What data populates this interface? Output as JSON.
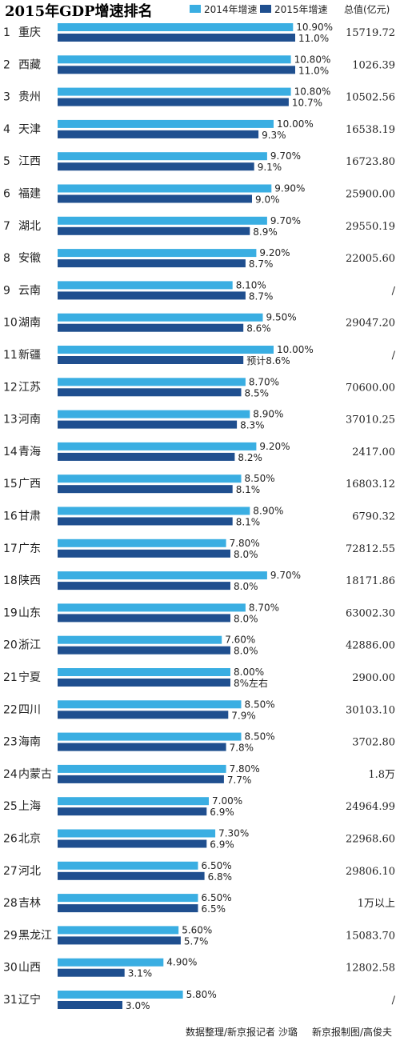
{
  "chart_data": {
    "type": "bar",
    "title": "2015年GDP增速排名",
    "total_header": "总值(亿元)",
    "series": [
      {
        "name": "2014年增速",
        "color": "#3aaee2"
      },
      {
        "name": "2015年增速",
        "color": "#1f4f8f"
      }
    ],
    "rows": [
      {
        "rank": "1",
        "name": "重庆",
        "v2014": 10.9,
        "l2014": "10.90%",
        "v2015": 11.0,
        "l2015": "11.0%",
        "total": "15719.72"
      },
      {
        "rank": "2",
        "name": "西藏",
        "v2014": 10.8,
        "l2014": "10.80%",
        "v2015": 11.0,
        "l2015": "11.0%",
        "total": "1026.39"
      },
      {
        "rank": "3",
        "name": "贵州",
        "v2014": 10.8,
        "l2014": "10.80%",
        "v2015": 10.7,
        "l2015": "10.7%",
        "total": "10502.56"
      },
      {
        "rank": "4",
        "name": "天津",
        "v2014": 10.0,
        "l2014": "10.00%",
        "v2015": 9.3,
        "l2015": "9.3%",
        "total": "16538.19"
      },
      {
        "rank": "5",
        "name": "江西",
        "v2014": 9.7,
        "l2014": "9.70%",
        "v2015": 9.1,
        "l2015": "9.1%",
        "total": "16723.80"
      },
      {
        "rank": "6",
        "name": "福建",
        "v2014": 9.9,
        "l2014": "9.90%",
        "v2015": 9.0,
        "l2015": "9.0%",
        "total": "25900.00"
      },
      {
        "rank": "7",
        "name": "湖北",
        "v2014": 9.7,
        "l2014": "9.70%",
        "v2015": 8.9,
        "l2015": "8.9%",
        "total": "29550.19"
      },
      {
        "rank": "8",
        "name": "安徽",
        "v2014": 9.2,
        "l2014": "9.20%",
        "v2015": 8.7,
        "l2015": "8.7%",
        "total": "22005.60"
      },
      {
        "rank": "9",
        "name": "云南",
        "v2014": 8.1,
        "l2014": "8.10%",
        "v2015": 8.7,
        "l2015": "8.7%",
        "total": "/"
      },
      {
        "rank": "10",
        "name": "湖南",
        "v2014": 9.5,
        "l2014": "9.50%",
        "v2015": 8.6,
        "l2015": "8.6%",
        "total": "29047.20"
      },
      {
        "rank": "11",
        "name": "新疆",
        "v2014": 10.0,
        "l2014": "10.00%",
        "v2015": 8.6,
        "l2015": "预计8.6%",
        "total": "/"
      },
      {
        "rank": "12",
        "name": "江苏",
        "v2014": 8.7,
        "l2014": "8.70%",
        "v2015": 8.5,
        "l2015": "8.5%",
        "total": "70600.00"
      },
      {
        "rank": "13",
        "name": "河南",
        "v2014": 8.9,
        "l2014": "8.90%",
        "v2015": 8.3,
        "l2015": "8.3%",
        "total": "37010.25"
      },
      {
        "rank": "14",
        "name": "青海",
        "v2014": 9.2,
        "l2014": "9.20%",
        "v2015": 8.2,
        "l2015": "8.2%",
        "total": "2417.00"
      },
      {
        "rank": "15",
        "name": "广西",
        "v2014": 8.5,
        "l2014": "8.50%",
        "v2015": 8.1,
        "l2015": "8.1%",
        "total": "16803.12"
      },
      {
        "rank": "16",
        "name": "甘肃",
        "v2014": 8.9,
        "l2014": "8.90%",
        "v2015": 8.1,
        "l2015": "8.1%",
        "total": "6790.32"
      },
      {
        "rank": "17",
        "name": "广东",
        "v2014": 7.8,
        "l2014": "7.80%",
        "v2015": 8.0,
        "l2015": "8.0%",
        "total": "72812.55"
      },
      {
        "rank": "18",
        "name": "陕西",
        "v2014": 9.7,
        "l2014": "9.70%",
        "v2015": 8.0,
        "l2015": "8.0%",
        "total": "18171.86"
      },
      {
        "rank": "19",
        "name": "山东",
        "v2014": 8.7,
        "l2014": "8.70%",
        "v2015": 8.0,
        "l2015": "8.0%",
        "total": "63002.30"
      },
      {
        "rank": "20",
        "name": "浙江",
        "v2014": 7.6,
        "l2014": "7.60%",
        "v2015": 8.0,
        "l2015": "8.0%",
        "total": "42886.00"
      },
      {
        "rank": "21",
        "name": "宁夏",
        "v2014": 8.0,
        "l2014": "8.00%",
        "v2015": 8.0,
        "l2015": "8%左右",
        "total": "2900.00"
      },
      {
        "rank": "22",
        "name": "四川",
        "v2014": 8.5,
        "l2014": "8.50%",
        "v2015": 7.9,
        "l2015": "7.9%",
        "total": "30103.10"
      },
      {
        "rank": "23",
        "name": "海南",
        "v2014": 8.5,
        "l2014": "8.50%",
        "v2015": 7.8,
        "l2015": "7.8%",
        "total": "3702.80"
      },
      {
        "rank": "24",
        "name": "内蒙古",
        "v2014": 7.8,
        "l2014": "7.80%",
        "v2015": 7.7,
        "l2015": "7.7%",
        "total": "1.8万"
      },
      {
        "rank": "25",
        "name": "上海",
        "v2014": 7.0,
        "l2014": "7.00%",
        "v2015": 6.9,
        "l2015": "6.9%",
        "total": "24964.99"
      },
      {
        "rank": "26",
        "name": "北京",
        "v2014": 7.3,
        "l2014": "7.30%",
        "v2015": 6.9,
        "l2015": "6.9%",
        "total": "22968.60"
      },
      {
        "rank": "27",
        "name": "河北",
        "v2014": 6.5,
        "l2014": "6.50%",
        "v2015": 6.8,
        "l2015": "6.8%",
        "total": "29806.10"
      },
      {
        "rank": "28",
        "name": "吉林",
        "v2014": 6.5,
        "l2014": "6.50%",
        "v2015": 6.5,
        "l2015": "6.5%",
        "total": "1万以上"
      },
      {
        "rank": "29",
        "name": "黑龙江",
        "v2014": 5.6,
        "l2014": "5.60%",
        "v2015": 5.7,
        "l2015": "5.7%",
        "total": "15083.70"
      },
      {
        "rank": "30",
        "name": "山西",
        "v2014": 4.9,
        "l2014": "4.90%",
        "v2015": 3.1,
        "l2015": "3.1%",
        "total": "12802.58"
      },
      {
        "rank": "31",
        "name": "辽宁",
        "v2014": 5.8,
        "l2014": "5.80%",
        "v2015": 3.0,
        "l2015": "3.0%",
        "total": "/"
      }
    ]
  },
  "credits": {
    "data": "数据整理/新京报记者 沙璐",
    "graphic": "新京报制图/高俊夫"
  }
}
